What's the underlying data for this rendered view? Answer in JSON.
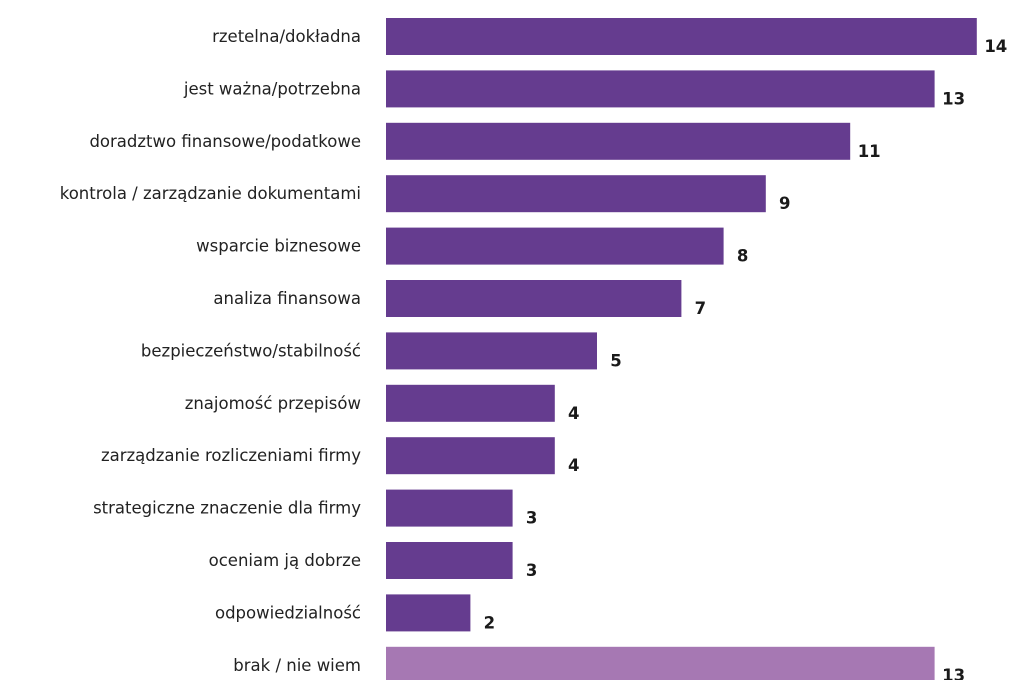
{
  "chart_data": {
    "type": "bar",
    "orientation": "horizontal",
    "categories": [
      "rzetelna/dokładna",
      "jest ważna/potrzebna",
      "doradztwo finansowe/podatkowe",
      "kontrola / zarządzanie dokumentami",
      "wsparcie biznesowe",
      "analiza finansowa",
      "bezpieczeństwo/stabilność",
      "znajomość przepisów",
      "zarządzanie rozliczeniami firmy",
      "strategiczne znaczenie dla firmy",
      "oceniam ją dobrze",
      "odpowiedzialność",
      "brak / nie wiem"
    ],
    "values": [
      14,
      13,
      11,
      9,
      8,
      7,
      5,
      4,
      4,
      3,
      3,
      2,
      13
    ],
    "value_labels": [
      "14",
      "13",
      "11",
      "9",
      "8",
      "7",
      "5",
      "4",
      "4",
      "3",
      "3",
      "2",
      "13"
    ],
    "bar_colors": [
      "#653c8f",
      "#653c8f",
      "#653c8f",
      "#653c8f",
      "#653c8f",
      "#653c8f",
      "#653c8f",
      "#653c8f",
      "#653c8f",
      "#653c8f",
      "#653c8f",
      "#653c8f",
      "#a678b3"
    ],
    "xlim": [
      0,
      14
    ],
    "grid": false,
    "legend": "none"
  }
}
